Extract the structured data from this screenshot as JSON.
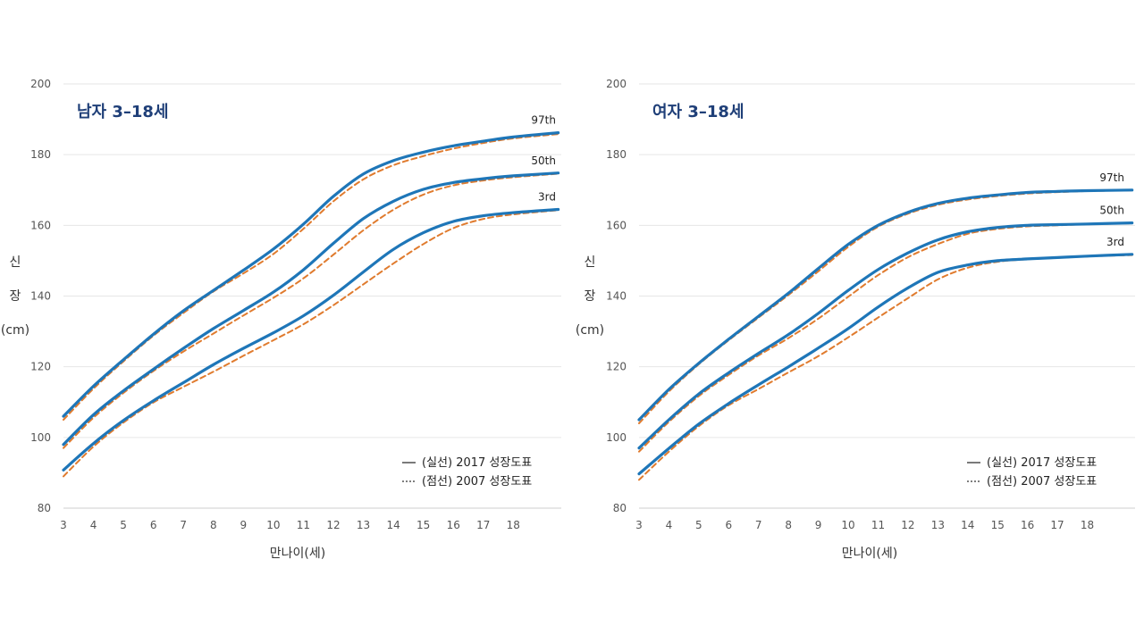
{
  "chart_data": [
    {
      "type": "line",
      "title": "남자 3–18세",
      "xlabel": "만나이(세)",
      "ylabel": "신\n장\n(cm)",
      "xlim": [
        3,
        19.6
      ],
      "ylim": [
        80,
        200
      ],
      "x_ticks": [
        3,
        4,
        5,
        6,
        7,
        8,
        9,
        10,
        11,
        12,
        13,
        14,
        15,
        16,
        17,
        18
      ],
      "y_ticks": [
        80,
        100,
        120,
        140,
        160,
        180,
        200
      ],
      "grid": true,
      "legend": {
        "position": "bottom-right",
        "entries": [
          {
            "symbol": "—",
            "label": "(실선) 2017 성장도표"
          },
          {
            "symbol": "┅",
            "label": "(점선) 2007 성장도표"
          }
        ]
      },
      "x": [
        3,
        4,
        5,
        6,
        7,
        8,
        9,
        10,
        11,
        12,
        13,
        14,
        15,
        16,
        17,
        18,
        19.5
      ],
      "series": [
        {
          "name": "97th",
          "style": "solid",
          "color": "#1e76b8",
          "values": [
            106,
            114.5,
            122,
            129.2,
            135.8,
            141.6,
            147.3,
            153.3,
            160.3,
            168.2,
            174.5,
            178.3,
            180.7,
            182.5,
            183.8,
            185.0,
            186.2
          ]
        },
        {
          "name": "50th",
          "style": "solid",
          "color": "#1e76b8",
          "values": [
            98,
            106.4,
            113.2,
            119.3,
            125.2,
            130.8,
            135.9,
            141.1,
            147.4,
            154.9,
            161.9,
            166.8,
            170.2,
            172.1,
            173.2,
            174.0,
            174.8
          ]
        },
        {
          "name": "3rd",
          "style": "solid",
          "color": "#1e76b8",
          "values": [
            90.8,
            98.3,
            104.8,
            110.4,
            115.5,
            120.6,
            125.2,
            129.6,
            134.4,
            140.2,
            146.8,
            153.2,
            157.9,
            161.1,
            162.7,
            163.6,
            164.5
          ]
        },
        {
          "name": "97th",
          "style": "dashed",
          "color": "#e07b2e",
          "values": [
            105,
            113.8,
            121.5,
            128.8,
            135.2,
            141.3,
            146.4,
            151.9,
            159.0,
            166.8,
            173.0,
            177.0,
            179.6,
            181.7,
            183.3,
            184.6,
            185.8
          ]
        },
        {
          "name": "50th",
          "style": "dashed",
          "color": "#e07b2e",
          "values": [
            97,
            105.6,
            112.6,
            118.8,
            124.3,
            129.4,
            134.5,
            139.5,
            145.0,
            151.7,
            158.6,
            164.4,
            168.7,
            171.3,
            172.7,
            173.6,
            174.6
          ]
        },
        {
          "name": "3rd",
          "style": "dashed",
          "color": "#e07b2e",
          "values": [
            89,
            97.4,
            104.2,
            109.9,
            114.3,
            118.6,
            123.1,
            127.5,
            132.0,
            137.4,
            143.3,
            149.2,
            154.7,
            159.2,
            161.8,
            163.1,
            164.3
          ]
        }
      ]
    },
    {
      "type": "line",
      "title": "여자 3–18세",
      "xlabel": "만나이(세)",
      "ylabel": "신\n장\n(cm)",
      "xlim": [
        3,
        19.6
      ],
      "ylim": [
        80,
        200
      ],
      "x_ticks": [
        3,
        4,
        5,
        6,
        7,
        8,
        9,
        10,
        11,
        12,
        13,
        14,
        15,
        16,
        17,
        18
      ],
      "y_ticks": [
        80,
        100,
        120,
        140,
        160,
        180,
        200
      ],
      "grid": true,
      "legend": {
        "position": "bottom-right",
        "entries": [
          {
            "symbol": "—",
            "label": "(실선) 2017 성장도표"
          },
          {
            "symbol": "┅",
            "label": "(점선) 2007 성장도표"
          }
        ]
      },
      "x": [
        3,
        4,
        5,
        6,
        7,
        8,
        9,
        10,
        11,
        12,
        13,
        14,
        15,
        16,
        17,
        18,
        19.5
      ],
      "series": [
        {
          "name": "97th",
          "style": "solid",
          "color": "#1e76b8",
          "values": [
            105,
            113.6,
            121.0,
            127.8,
            134.3,
            140.8,
            147.8,
            154.6,
            160.0,
            163.7,
            166.2,
            167.7,
            168.6,
            169.3,
            169.6,
            169.8,
            170.0
          ]
        },
        {
          "name": "50th",
          "style": "solid",
          "color": "#1e76b8",
          "values": [
            97,
            105.0,
            112.3,
            118.3,
            123.8,
            129.1,
            135.1,
            141.6,
            147.5,
            152.2,
            155.9,
            158.2,
            159.4,
            160.0,
            160.2,
            160.4,
            160.7
          ]
        },
        {
          "name": "3rd",
          "style": "solid",
          "color": "#1e76b8",
          "values": [
            89.7,
            96.9,
            103.8,
            109.6,
            114.9,
            120.0,
            125.3,
            130.8,
            136.9,
            142.3,
            146.7,
            148.8,
            150.0,
            150.5,
            150.9,
            151.3,
            151.8
          ]
        },
        {
          "name": "97th",
          "style": "dashed",
          "color": "#e07b2e",
          "values": [
            104,
            113.0,
            120.7,
            127.5,
            133.9,
            140.3,
            147.0,
            153.9,
            159.6,
            163.3,
            165.8,
            167.3,
            168.3,
            169.0,
            169.4,
            169.7,
            169.9
          ]
        },
        {
          "name": "50th",
          "style": "dashed",
          "color": "#e07b2e",
          "values": [
            96,
            104.4,
            111.7,
            117.7,
            123.2,
            128.1,
            133.6,
            139.8,
            145.9,
            151.0,
            154.7,
            157.6,
            159.0,
            159.7,
            160.0,
            160.3,
            160.6
          ]
        },
        {
          "name": "3rd",
          "style": "dashed",
          "color": "#e07b2e",
          "values": [
            88,
            96.0,
            103.2,
            109.1,
            113.7,
            118.4,
            123.0,
            128.3,
            133.9,
            139.4,
            144.7,
            148.0,
            149.7,
            150.4,
            150.8,
            151.2,
            151.6
          ]
        }
      ]
    }
  ]
}
